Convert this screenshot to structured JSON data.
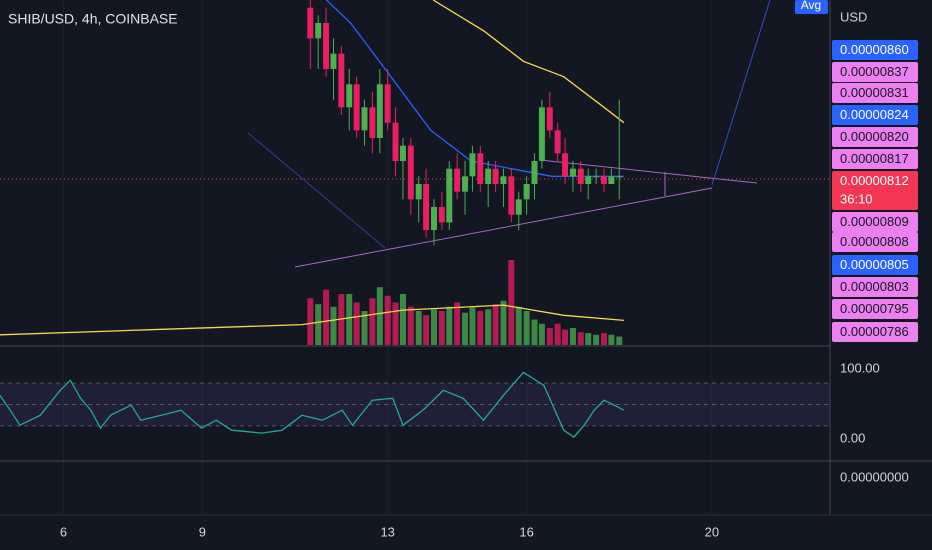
{
  "chart_data": {
    "type": "candlestick",
    "title": "SHIB/USD, 4h, COINBASE",
    "x": [
      11.33,
      11.5,
      11.67,
      11.83,
      12,
      12.17,
      12.33,
      12.5,
      12.67,
      12.83,
      13,
      13.17,
      13.33,
      13.5,
      13.67,
      13.83,
      14,
      14.17,
      14.33,
      14.5,
      14.67,
      14.83,
      15,
      15.17,
      15.33,
      15.5,
      15.67,
      15.83,
      16,
      16.17,
      16.33,
      16.5,
      16.67,
      16.83,
      17,
      17.17,
      17.33,
      17.5,
      17.67,
      17.83,
      18
    ],
    "open": [
      8.34e-06,
      8.3e-06,
      8.32e-06,
      8.26e-06,
      8.28e-06,
      8.21e-06,
      8.24e-06,
      8.18e-06,
      8.21e-06,
      8.17e-06,
      8.24e-06,
      8.19e-06,
      8.14e-06,
      8.16e-06,
      8.09e-06,
      8.11e-06,
      8.05e-06,
      8.08e-06,
      8.06e-06,
      8.13e-06,
      8.1e-06,
      8.12e-06,
      8.15e-06,
      8.11e-06,
      8.13e-06,
      8.11e-06,
      8.12e-06,
      8.07e-06,
      8.09e-06,
      8.11e-06,
      8.14e-06,
      8.21e-06,
      8.18e-06,
      8.15e-06,
      8.12e-06,
      8.13e-06,
      8.11e-06,
      8.12e-06,
      8.12e-06,
      8.11e-06,
      8.12e-06
    ],
    "high": [
      8.36e-06,
      8.33e-06,
      8.34e-06,
      8.3e-06,
      8.29e-06,
      8.26e-06,
      8.25e-06,
      8.22e-06,
      8.23e-06,
      8.26e-06,
      8.26e-06,
      8.21e-06,
      8.17e-06,
      8.17e-06,
      8.12e-06,
      8.13e-06,
      8.09e-06,
      8.1e-06,
      8.14e-06,
      8.15e-06,
      8.14e-06,
      8.16e-06,
      8.16e-06,
      8.14e-06,
      8.14e-06,
      8.13e-06,
      8.13e-06,
      8.1e-06,
      8.12e-06,
      8.15e-06,
      8.22e-06,
      8.23e-06,
      8.19e-06,
      8.17e-06,
      8.14e-06,
      8.14e-06,
      8.13e-06,
      8.13e-06,
      8.13e-06,
      8.13e-06,
      8.22e-06
    ],
    "low": [
      8.26e-06,
      8.26e-06,
      8.25e-06,
      8.22e-06,
      8.2e-06,
      8.18e-06,
      8.17e-06,
      8.16e-06,
      8.15e-06,
      8.15e-06,
      8.18e-06,
      8.12e-06,
      8.09e-06,
      8.07e-06,
      8.06e-06,
      8.04e-06,
      8.03e-06,
      8.05e-06,
      8.05e-06,
      8.09e-06,
      8.07e-06,
      8.1e-06,
      8.1e-06,
      8.08e-06,
      8.1e-06,
      8.08e-06,
      8.06e-06,
      8.05e-06,
      8.07e-06,
      8.09e-06,
      8.13e-06,
      8.17e-06,
      8.14e-06,
      8.11e-06,
      8.1e-06,
      8.1e-06,
      8.09e-06,
      8.11e-06,
      8.1e-06,
      8.11e-06,
      8.09e-06
    ],
    "close": [
      8.3e-06,
      8.32e-06,
      8.26e-06,
      8.28e-06,
      8.21e-06,
      8.24e-06,
      8.18e-06,
      8.21e-06,
      8.17e-06,
      8.24e-06,
      8.19e-06,
      8.14e-06,
      8.16e-06,
      8.09e-06,
      8.11e-06,
      8.05e-06,
      8.08e-06,
      8.06e-06,
      8.13e-06,
      8.1e-06,
      8.12e-06,
      8.15e-06,
      8.11e-06,
      8.13e-06,
      8.11e-06,
      8.12e-06,
      8.07e-06,
      8.09e-06,
      8.11e-06,
      8.14e-06,
      8.21e-06,
      8.18e-06,
      8.15e-06,
      8.12e-06,
      8.13e-06,
      8.11e-06,
      8.12e-06,
      8.12e-06,
      8.11e-06,
      8.12e-06,
      8.12e-06
    ],
    "up_color": "#4caf50",
    "down_color": "#e91e63",
    "xlim": [
      4.63,
      22.55
    ],
    "xticks": [
      6,
      9,
      13,
      16,
      20
    ],
    "ylim": [
      7.9e-06,
      8.35e-06
    ],
    "volume": {
      "values": [
        55,
        48,
        65,
        45,
        60,
        60,
        50,
        40,
        55,
        68,
        58,
        50,
        60,
        45,
        40,
        35,
        42,
        40,
        45,
        50,
        38,
        44,
        40,
        42,
        48,
        52,
        100,
        45,
        40,
        30,
        25,
        20,
        25,
        18,
        20,
        15,
        14,
        12,
        14,
        12,
        10
      ],
      "ylim": [
        0,
        100
      ],
      "ma": {
        "x": [
          4.63,
          7.89,
          11.15,
          13.33,
          15.5,
          16.8,
          18.1
        ],
        "values": [
          12,
          18,
          24,
          41,
          47,
          35,
          29
        ],
        "color": "#f5d94e"
      }
    },
    "moving_averages": [
      {
        "x": [
          11.33,
          12.2,
          13.07,
          13.93,
          14.8,
          15.67,
          16.54,
          17.4,
          18.1
        ],
        "values": [
          8.37e-06,
          8.32e-06,
          8.25e-06,
          8.18e-06,
          8.14e-06,
          8.13e-06,
          8.12e-06,
          8.12e-06,
          8.12e-06
        ],
        "color": "#2962ff"
      },
      {
        "x": [
          13.98,
          15.07,
          15.93,
          16.8,
          17.67,
          18.1
        ],
        "values": [
          8.35e-06,
          8.31e-06,
          8.27e-06,
          8.25e-06,
          8.21e-06,
          8.19e-06
        ],
        "color": "#f5d94e"
      }
    ],
    "rsi": {
      "x": [
        4.63,
        4.85,
        5.06,
        5.5,
        5.93,
        6.15,
        6.37,
        6.59,
        6.8,
        7.02,
        7.46,
        7.67,
        8.11,
        8.54,
        8.98,
        9.3,
        9.63,
        10.28,
        10.72,
        11.15,
        11.59,
        12.02,
        12.24,
        12.67,
        13.11,
        13.33,
        13.76,
        14.2,
        14.63,
        15.07,
        15.5,
        15.93,
        16.37,
        16.8,
        17.02,
        17.24,
        17.46,
        17.67,
        17.89,
        18.1
      ],
      "values": [
        58.6,
        44.7,
        30.7,
        40,
        63.3,
        72.6,
        55.8,
        44.7,
        27.9,
        40,
        49.3,
        35.3,
        40,
        44.7,
        27.9,
        35.3,
        26,
        23.3,
        26,
        40,
        35.3,
        44.7,
        30.7,
        54,
        55.8,
        30.7,
        44.7,
        63.3,
        55.8,
        35.3,
        58.6,
        80,
        67.9,
        26,
        19.5,
        30.7,
        44.7,
        54,
        49.3,
        44.7
      ],
      "ylim": [
        0,
        100
      ],
      "levels": [
        70,
        50,
        30
      ],
      "color": "#26a69a",
      "labels": [
        "100.00",
        "0.00"
      ]
    },
    "oscillator_label": "0.00000000"
  },
  "screen": {
    "avg": "Avg",
    "currency": "USD",
    "countdown": "36:10",
    "price_tags": [
      {
        "text": "0.00000860",
        "color": "#2962ff"
      },
      {
        "text": "0.00000837",
        "color": "#ec80f0"
      },
      {
        "text": "0.00000831",
        "color": "#ec80f0"
      },
      {
        "text": "0.00000824",
        "color": "#2962ff"
      },
      {
        "text": "0.00000820",
        "color": "#ec80f0"
      },
      {
        "text": "0.00000817",
        "color": "#ec80f0"
      },
      {
        "text": "0.00000812",
        "color": "#f23654"
      },
      {
        "text": "0.00000809",
        "color": "#ec80f0"
      },
      {
        "text": "0.00000808",
        "color": "#ec80f0"
      },
      {
        "text": "0.00000805",
        "color": "#2962ff"
      },
      {
        "text": "0.00000803",
        "color": "#ec80f0"
      },
      {
        "text": "0.00000795",
        "color": "#ec80f0"
      },
      {
        "text": "0.00000786",
        "color": "#ec80f0"
      }
    ]
  }
}
